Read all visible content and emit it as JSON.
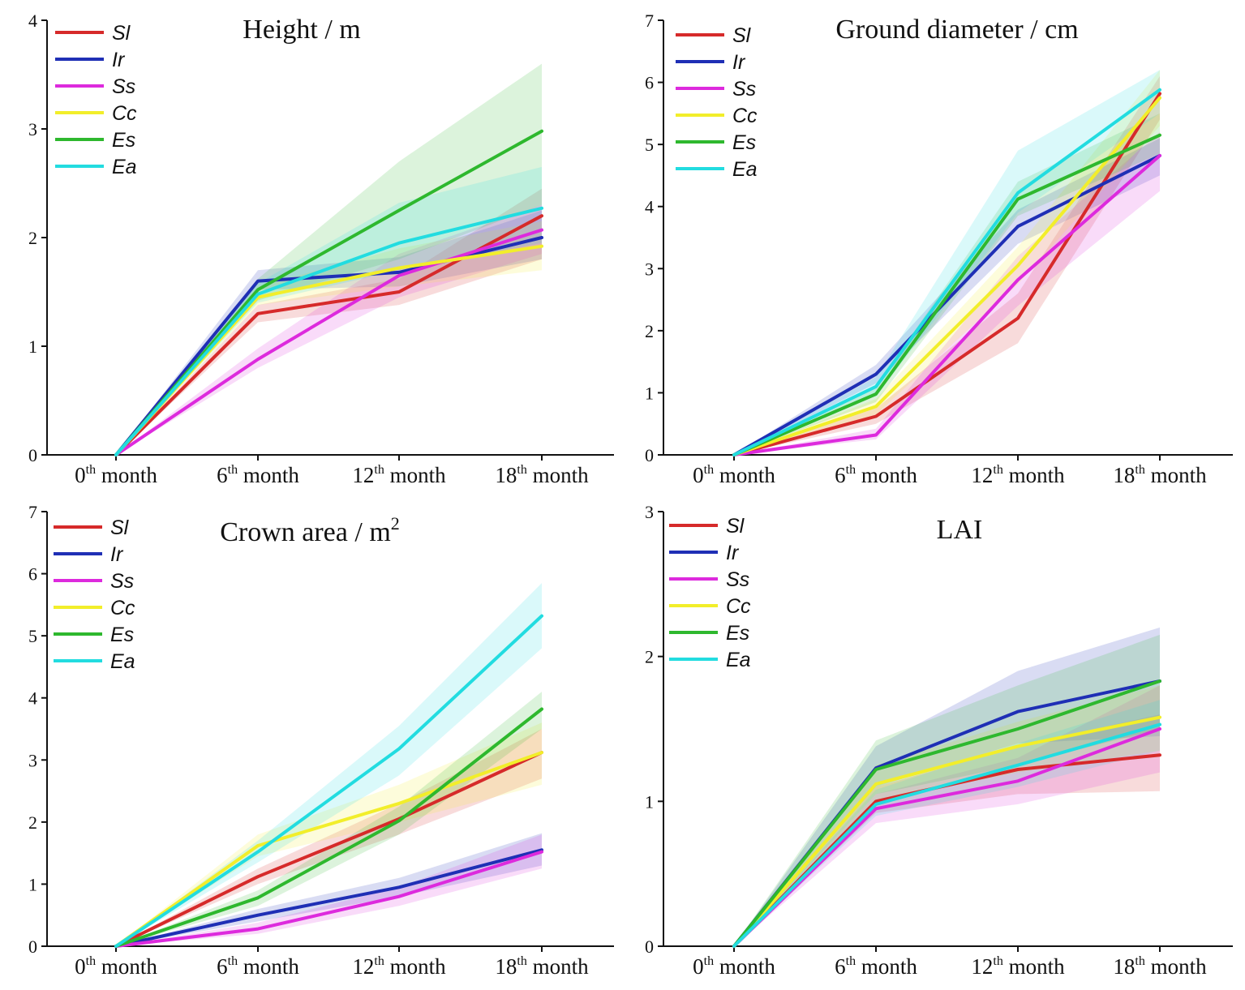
{
  "chart_data": [
    {
      "type": "line",
      "title": "Height / m",
      "title_sup": "",
      "xlabel": "",
      "ylabel": "",
      "ylim": [
        0,
        4
      ],
      "yticks": [
        0,
        1,
        2,
        3,
        4
      ],
      "categories": [
        {
          "base": "0",
          "sup": "th",
          "rest": " month"
        },
        {
          "base": "6",
          "sup": "th",
          "rest": " month"
        },
        {
          "base": "12",
          "sup": "th",
          "rest": " month"
        },
        {
          "base": "18",
          "sup": "th",
          "rest": " month"
        }
      ],
      "legend_position": "top-left",
      "series": [
        {
          "name": "Sl",
          "color": "#d62a2a",
          "values": [
            0,
            1.3,
            1.5,
            2.2
          ],
          "lower": [
            0,
            1.22,
            1.38,
            1.8
          ],
          "upper": [
            0,
            1.38,
            1.62,
            2.45
          ]
        },
        {
          "name": "Ir",
          "color": "#1f2fb5",
          "values": [
            0,
            1.6,
            1.68,
            2.0
          ],
          "lower": [
            0,
            1.52,
            1.55,
            1.8
          ],
          "upper": [
            0,
            1.7,
            1.82,
            2.25
          ]
        },
        {
          "name": "Ss",
          "color": "#dd2add",
          "values": [
            0,
            0.88,
            1.65,
            2.07
          ],
          "lower": [
            0,
            0.8,
            1.45,
            1.85
          ],
          "upper": [
            0,
            0.98,
            1.85,
            2.3
          ]
        },
        {
          "name": "Cc",
          "color": "#f2ee2a",
          "values": [
            0,
            1.45,
            1.72,
            1.92
          ],
          "lower": [
            0,
            1.38,
            1.55,
            1.7
          ],
          "upper": [
            0,
            1.55,
            1.9,
            2.15
          ]
        },
        {
          "name": "Es",
          "color": "#2eb82e",
          "values": [
            0,
            1.52,
            2.25,
            2.98
          ],
          "lower": [
            0,
            1.42,
            1.8,
            2.3
          ],
          "upper": [
            0,
            1.62,
            2.7,
            3.6
          ]
        },
        {
          "name": "Ea",
          "color": "#22dce0",
          "values": [
            0,
            1.48,
            1.95,
            2.27
          ],
          "lower": [
            0,
            1.4,
            1.7,
            1.95
          ],
          "upper": [
            0,
            1.58,
            2.32,
            2.65
          ]
        }
      ]
    },
    {
      "type": "line",
      "title": "Ground diameter / cm",
      "title_sup": "",
      "xlabel": "",
      "ylabel": "",
      "ylim": [
        0,
        7
      ],
      "yticks": [
        0,
        1,
        2,
        3,
        4,
        5,
        6,
        7
      ],
      "categories": [
        {
          "base": "0",
          "sup": "th",
          "rest": " month"
        },
        {
          "base": "6",
          "sup": "th",
          "rest": " month"
        },
        {
          "base": "12",
          "sup": "th",
          "rest": " month"
        },
        {
          "base": "18",
          "sup": "th",
          "rest": " month"
        }
      ],
      "legend_position": "top-left",
      "series": [
        {
          "name": "Sl",
          "color": "#d62a2a",
          "values": [
            0,
            0.62,
            2.2,
            5.82
          ],
          "lower": [
            0,
            0.5,
            1.8,
            5.4
          ],
          "upper": [
            0,
            0.75,
            2.6,
            6.1
          ]
        },
        {
          "name": "Ir",
          "color": "#1f2fb5",
          "values": [
            0,
            1.3,
            3.68,
            4.82
          ],
          "lower": [
            0,
            1.15,
            3.4,
            4.5
          ],
          "upper": [
            0,
            1.45,
            3.95,
            5.1
          ]
        },
        {
          "name": "Ss",
          "color": "#dd2add",
          "values": [
            0,
            0.32,
            2.82,
            4.82
          ],
          "lower": [
            0,
            0.25,
            2.4,
            4.25
          ],
          "upper": [
            0,
            0.42,
            3.2,
            5.2
          ]
        },
        {
          "name": "Cc",
          "color": "#f2ee2a",
          "values": [
            0,
            0.78,
            3.05,
            5.75
          ],
          "lower": [
            0,
            0.65,
            2.75,
            5.3
          ],
          "upper": [
            0,
            0.9,
            3.35,
            6.2
          ]
        },
        {
          "name": "Es",
          "color": "#2eb82e",
          "values": [
            0,
            0.98,
            4.12,
            5.15
          ],
          "lower": [
            0,
            0.85,
            3.85,
            4.85
          ],
          "upper": [
            0,
            1.1,
            4.4,
            5.5
          ]
        },
        {
          "name": "Ea",
          "color": "#22dce0",
          "values": [
            0,
            1.1,
            4.22,
            5.88
          ],
          "lower": [
            0,
            0.95,
            3.9,
            5.5
          ],
          "upper": [
            0,
            1.25,
            4.9,
            6.2
          ]
        }
      ]
    },
    {
      "type": "line",
      "title": "Crown area / m",
      "title_sup": "2",
      "xlabel": "",
      "ylabel": "",
      "ylim": [
        0,
        7
      ],
      "yticks": [
        0,
        1,
        2,
        3,
        4,
        5,
        6,
        7
      ],
      "categories": [
        {
          "base": "0",
          "sup": "th",
          "rest": " month"
        },
        {
          "base": "6",
          "sup": "th",
          "rest": " month"
        },
        {
          "base": "12",
          "sup": "th",
          "rest": " month"
        },
        {
          "base": "18",
          "sup": "th",
          "rest": " month"
        }
      ],
      "legend_position": "top-left",
      "series": [
        {
          "name": "Sl",
          "color": "#d62a2a",
          "values": [
            0,
            1.12,
            2.05,
            3.12
          ],
          "lower": [
            0,
            1.0,
            1.8,
            2.7
          ],
          "upper": [
            0,
            1.25,
            2.3,
            3.5
          ]
        },
        {
          "name": "Ir",
          "color": "#1f2fb5",
          "values": [
            0,
            0.5,
            0.95,
            1.55
          ],
          "lower": [
            0,
            0.4,
            0.8,
            1.3
          ],
          "upper": [
            0,
            0.6,
            1.1,
            1.82
          ]
        },
        {
          "name": "Ss",
          "color": "#dd2add",
          "values": [
            0,
            0.28,
            0.8,
            1.52
          ],
          "lower": [
            0,
            0.2,
            0.65,
            1.25
          ],
          "upper": [
            0,
            0.38,
            0.95,
            1.8
          ]
        },
        {
          "name": "Cc",
          "color": "#f2ee2a",
          "values": [
            0,
            1.62,
            2.3,
            3.12
          ],
          "lower": [
            0,
            1.45,
            2.0,
            2.6
          ],
          "upper": [
            0,
            1.8,
            2.6,
            3.6
          ]
        },
        {
          "name": "Es",
          "color": "#2eb82e",
          "values": [
            0,
            0.78,
            2.02,
            3.82
          ],
          "lower": [
            0,
            0.65,
            1.8,
            3.5
          ],
          "upper": [
            0,
            0.9,
            2.25,
            4.1
          ]
        },
        {
          "name": "Ea",
          "color": "#22dce0",
          "values": [
            0,
            1.52,
            3.18,
            5.32
          ],
          "lower": [
            0,
            1.35,
            2.75,
            4.8
          ],
          "upper": [
            0,
            1.7,
            3.55,
            5.85
          ]
        }
      ]
    },
    {
      "type": "line",
      "title": "LAI",
      "title_sup": "",
      "xlabel": "",
      "ylabel": "",
      "ylim": [
        0,
        3
      ],
      "yticks": [
        0,
        1,
        2,
        3
      ],
      "categories": [
        {
          "base": "0",
          "sup": "th",
          "rest": " month"
        },
        {
          "base": "6",
          "sup": "th",
          "rest": " month"
        },
        {
          "base": "12",
          "sup": "th",
          "rest": " month"
        },
        {
          "base": "18",
          "sup": "th",
          "rest": " month"
        }
      ],
      "legend_position": "top-left",
      "series": [
        {
          "name": "Sl",
          "color": "#d62a2a",
          "values": [
            0,
            1.0,
            1.22,
            1.32
          ],
          "lower": [
            0,
            0.92,
            1.05,
            1.07
          ],
          "upper": [
            0,
            1.1,
            1.38,
            1.6
          ]
        },
        {
          "name": "Ir",
          "color": "#1f2fb5",
          "values": [
            0,
            1.23,
            1.62,
            1.83
          ],
          "lower": [
            0,
            1.1,
            1.4,
            1.45
          ],
          "upper": [
            0,
            1.38,
            1.9,
            2.2
          ]
        },
        {
          "name": "Ss",
          "color": "#dd2add",
          "values": [
            0,
            0.95,
            1.14,
            1.5
          ],
          "lower": [
            0,
            0.85,
            0.98,
            1.2
          ],
          "upper": [
            0,
            1.05,
            1.3,
            1.8
          ]
        },
        {
          "name": "Cc",
          "color": "#f2ee2a",
          "values": [
            0,
            1.12,
            1.38,
            1.58
          ],
          "lower": [
            0,
            1.0,
            1.2,
            1.35
          ],
          "upper": [
            0,
            1.25,
            1.55,
            1.8
          ]
        },
        {
          "name": "Es",
          "color": "#2eb82e",
          "values": [
            0,
            1.22,
            1.5,
            1.83
          ],
          "lower": [
            0,
            1.05,
            1.25,
            1.5
          ],
          "upper": [
            0,
            1.42,
            1.8,
            2.15
          ]
        },
        {
          "name": "Ea",
          "color": "#22dce0",
          "values": [
            0,
            0.98,
            1.25,
            1.53
          ],
          "lower": [
            0,
            0.9,
            1.1,
            1.35
          ],
          "upper": [
            0,
            1.08,
            1.4,
            1.7
          ]
        }
      ]
    }
  ]
}
